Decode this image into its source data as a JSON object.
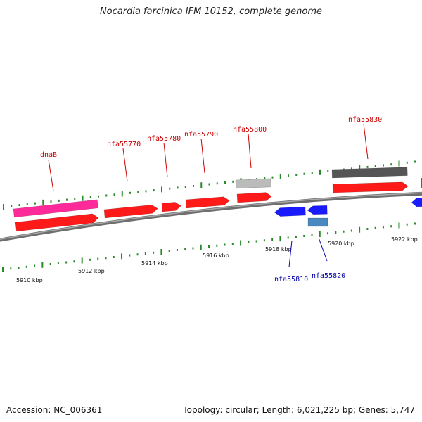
{
  "title": "Nocardia farcinica IFM 10152, complete genome",
  "footer": {
    "accession": "Accession: NC_006361",
    "summary": "Topology: circular; Length: 6,021,225 bp; Genes: 5,747"
  },
  "colors": {
    "backbone": "#8a8a8a",
    "forward_gene": "#ff1a1a",
    "reverse_gene": "#1a1aff",
    "tick": "#2a8a2a",
    "label_forward": "#cc0000",
    "label_reverse": "#0000aa",
    "pink_gene": "#ff2a9a",
    "dark_gene": "#555555",
    "light_gene": "#bbbbbb",
    "steel_gene": "#4a88c0"
  },
  "axis": {
    "unit": "kbp",
    "ticks": [
      "5910 kbp",
      "5912 kbp",
      "5914 kbp",
      "5916 kbp",
      "5918 kbp",
      "5920 kbp",
      "5922 kbp"
    ]
  },
  "genes": [
    {
      "name": "dnaB",
      "strand": "forward"
    },
    {
      "name": "nfa55770",
      "strand": "forward"
    },
    {
      "name": "nfa55780",
      "strand": "forward"
    },
    {
      "name": "nfa55790",
      "strand": "forward"
    },
    {
      "name": "nfa55800",
      "strand": "forward"
    },
    {
      "name": "nfa55810",
      "strand": "reverse"
    },
    {
      "name": "nfa55820",
      "strand": "reverse"
    },
    {
      "name": "nfa55830",
      "strand": "forward"
    }
  ]
}
